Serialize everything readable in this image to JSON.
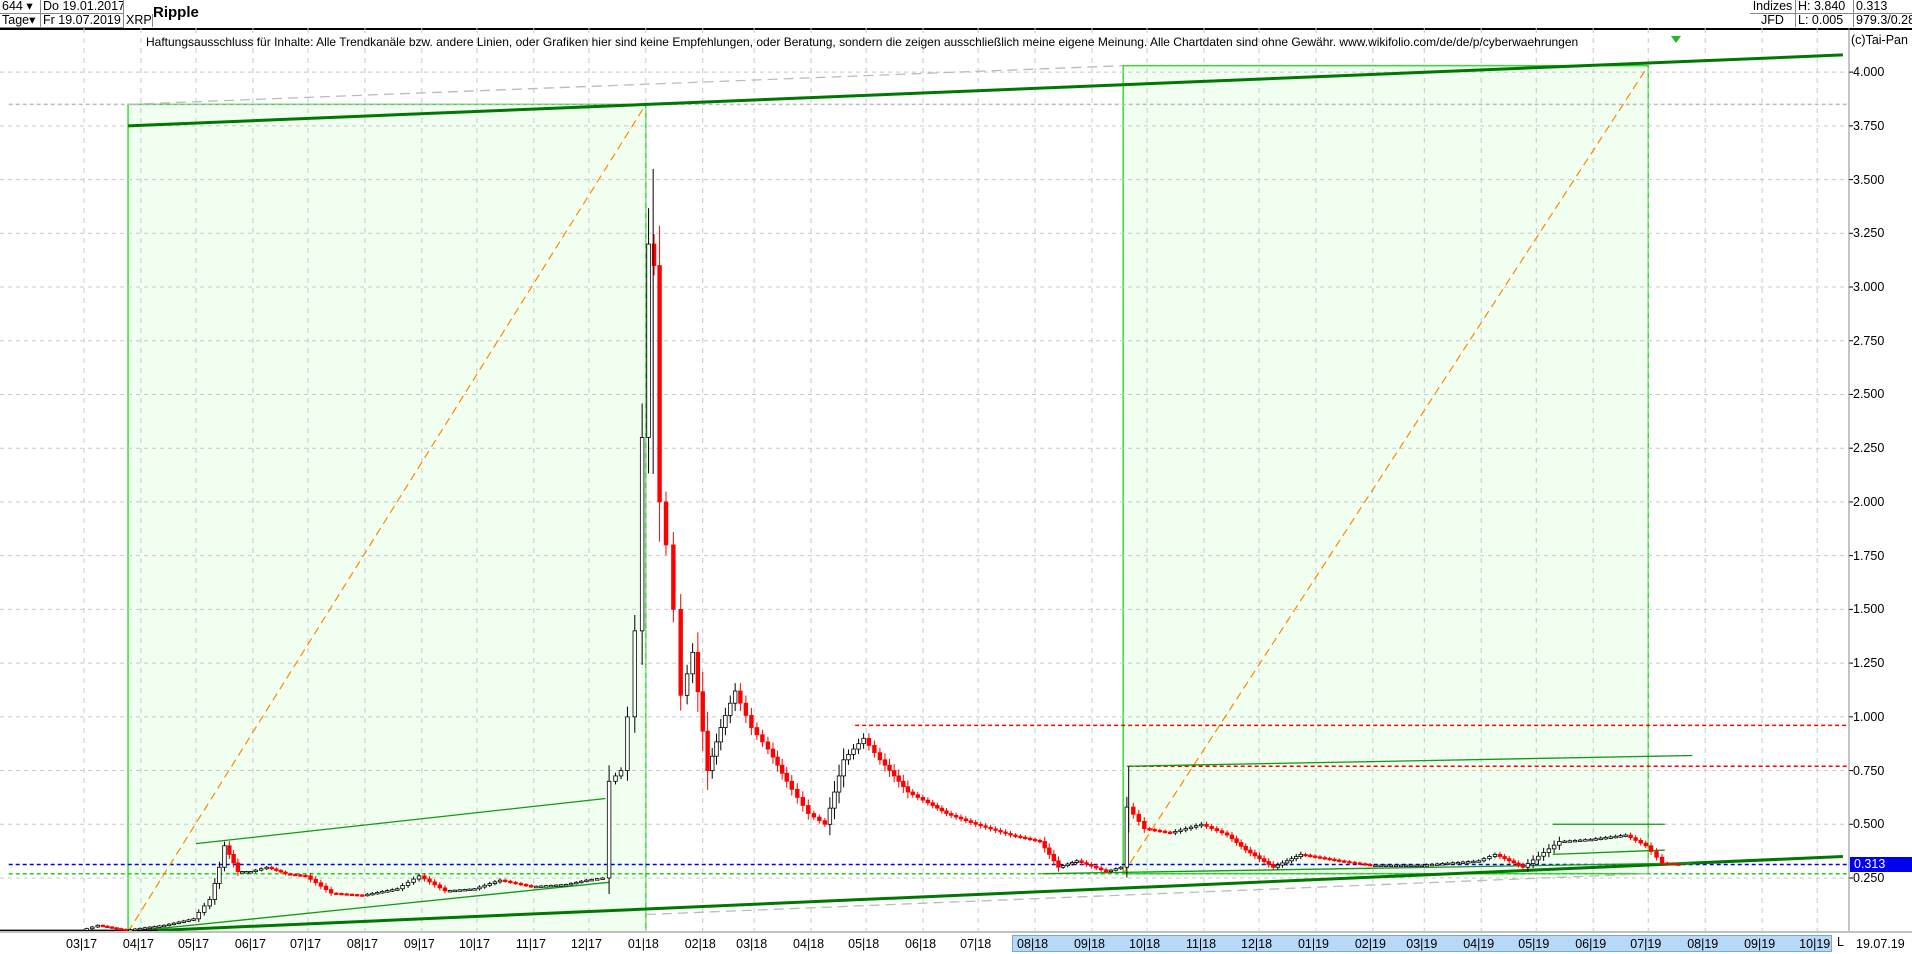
{
  "header": {
    "count": "644",
    "period": "Tage",
    "start_date": "Do 19.01.2017",
    "end_date": "Fr 19.07.2019",
    "symbol": "XRP",
    "title": "Ripple",
    "index_label": "Indizes",
    "source": "JFD",
    "high": "H: 3.840",
    "low": "L: 0.005",
    "last": "0.313",
    "extra": "979.3/0.28"
  },
  "disclaimer": "Haftungsausschluss für Inhalte: Alle Trendkanäle bzw. andere Linien, oder Grafiken hier sind keine Empfehlungen, oder Beratung, sondern die zeigen ausschließlich meine eigene Meinung. Alle Chartdaten sind ohne Gewähr.  www.wikifolio.com/de/de/p/cyberwaehrungen",
  "copyright": "(c)Tai-Pan",
  "x_axis": {
    "end_button": "L",
    "current_date": "19.07.19"
  },
  "colors": {
    "up_candle": "#ffffff",
    "down_candle": "#ff0000",
    "box_fill": "#f0fff0",
    "box_border": "#33dd33",
    "trend_line": "#007700",
    "price_marker": "#0000ee",
    "fib_line": "#ff8800"
  },
  "chart_data": {
    "type": "candlestick",
    "title": "Ripple",
    "y_ticks": [
      "0.250",
      "0.500",
      "0.750",
      "1.000",
      "1.250",
      "1.500",
      "1.750",
      "2.000",
      "2.250",
      "2.500",
      "2.750",
      "3.000",
      "3.250",
      "3.500",
      "3.750",
      "4.000"
    ],
    "x_ticks": [
      "03 17",
      "04 17",
      "05 17",
      "06 17",
      "07 17",
      "08 17",
      "09 17",
      "10 17",
      "11 17",
      "12 17",
      "01 18",
      "02 18",
      "03 18",
      "04 18",
      "05 18",
      "06 18",
      "07 18",
      "08 18",
      "09 18",
      "10 18",
      "11 18",
      "12 18",
      "01 19",
      "02 19",
      "03 19",
      "04 19",
      "05 19",
      "06 19",
      "07 19",
      "08 19",
      "09 19",
      "10 19"
    ],
    "ylim": [
      0,
      4.25
    ],
    "grid": true,
    "last_price": "0.313",
    "closes": [
      [
        "2017-03-01",
        0.006
      ],
      [
        "2017-03-10",
        0.03
      ],
      [
        "2017-03-25",
        0.007
      ],
      [
        "2017-04-15",
        0.03
      ],
      [
        "2017-05-01",
        0.06
      ],
      [
        "2017-05-10",
        0.15
      ],
      [
        "2017-05-15",
        0.3
      ],
      [
        "2017-05-18",
        0.4
      ],
      [
        "2017-05-25",
        0.28
      ],
      [
        "2017-06-01",
        0.28
      ],
      [
        "2017-06-10",
        0.3
      ],
      [
        "2017-06-20",
        0.27
      ],
      [
        "2017-07-01",
        0.26
      ],
      [
        "2017-07-15",
        0.18
      ],
      [
        "2017-08-01",
        0.17
      ],
      [
        "2017-08-20",
        0.2
      ],
      [
        "2017-09-01",
        0.26
      ],
      [
        "2017-09-15",
        0.19
      ],
      [
        "2017-10-01",
        0.2
      ],
      [
        "2017-10-15",
        0.24
      ],
      [
        "2017-11-01",
        0.21
      ],
      [
        "2017-11-20",
        0.22
      ],
      [
        "2017-12-01",
        0.24
      ],
      [
        "2017-12-10",
        0.25
      ],
      [
        "2017-12-14",
        0.7
      ],
      [
        "2017-12-20",
        0.75
      ],
      [
        "2017-12-24",
        1.0
      ],
      [
        "2017-12-28",
        1.4
      ],
      [
        "2018-01-01",
        2.3
      ],
      [
        "2018-01-04",
        3.2
      ],
      [
        "2018-01-07",
        3.1
      ],
      [
        "2018-01-10",
        2.0
      ],
      [
        "2018-01-14",
        1.8
      ],
      [
        "2018-01-18",
        1.5
      ],
      [
        "2018-01-22",
        1.1
      ],
      [
        "2018-01-28",
        1.3
      ],
      [
        "2018-02-05",
        0.75
      ],
      [
        "2018-02-12",
        0.95
      ],
      [
        "2018-02-20",
        1.12
      ],
      [
        "2018-03-01",
        0.95
      ],
      [
        "2018-03-10",
        0.85
      ],
      [
        "2018-03-20",
        0.7
      ],
      [
        "2018-04-01",
        0.55
      ],
      [
        "2018-04-10",
        0.5
      ],
      [
        "2018-04-20",
        0.8
      ],
      [
        "2018-05-01",
        0.9
      ],
      [
        "2018-05-10",
        0.8
      ],
      [
        "2018-05-25",
        0.65
      ],
      [
        "2018-06-05",
        0.6
      ],
      [
        "2018-06-15",
        0.55
      ],
      [
        "2018-07-01",
        0.5
      ],
      [
        "2018-07-20",
        0.45
      ],
      [
        "2018-08-05",
        0.42
      ],
      [
        "2018-08-15",
        0.3
      ],
      [
        "2018-08-25",
        0.33
      ],
      [
        "2018-09-10",
        0.28
      ],
      [
        "2018-09-18",
        0.3
      ],
      [
        "2018-09-22",
        0.58
      ],
      [
        "2018-10-01",
        0.48
      ],
      [
        "2018-10-15",
        0.46
      ],
      [
        "2018-11-01",
        0.5
      ],
      [
        "2018-11-15",
        0.45
      ],
      [
        "2018-11-25",
        0.38
      ],
      [
        "2018-12-10",
        0.3
      ],
      [
        "2018-12-25",
        0.36
      ],
      [
        "2019-01-15",
        0.33
      ],
      [
        "2019-02-01",
        0.31
      ],
      [
        "2019-03-01",
        0.31
      ],
      [
        "2019-04-01",
        0.33
      ],
      [
        "2019-04-10",
        0.36
      ],
      [
        "2019-04-25",
        0.3
      ],
      [
        "2019-05-15",
        0.42
      ],
      [
        "2019-06-01",
        0.43
      ],
      [
        "2019-06-20",
        0.45
      ],
      [
        "2019-07-01",
        0.4
      ],
      [
        "2019-07-10",
        0.32
      ],
      [
        "2019-07-19",
        0.313
      ]
    ],
    "spike_highs": [
      [
        "2018-01-05",
        3.55
      ],
      [
        "2018-09-21",
        0.77
      ]
    ],
    "boxes": [
      {
        "from": "2017-03-25",
        "to": "2018-01-01",
        "low": 0.0,
        "high": 3.85
      },
      {
        "from": "2018-09-18",
        "to": "2019-07-01",
        "low": 0.27,
        "high": 4.03
      }
    ],
    "trend_lines": [
      {
        "style": "thick",
        "from": [
          "2017-03-25",
          3.75
        ],
        "to": [
          "2019-10-15",
          4.08
        ]
      },
      {
        "style": "thick",
        "from": [
          "2017-03-25",
          0.0
        ],
        "to": [
          "2019-10-15",
          0.35
        ]
      },
      {
        "style": "thin",
        "from": [
          "2017-05-01",
          0.41
        ],
        "to": [
          "2017-12-10",
          0.62
        ]
      },
      {
        "style": "thin",
        "from": [
          "2017-03-25",
          0.0
        ],
        "to": [
          "2017-12-12",
          0.23
        ]
      },
      {
        "style": "thin",
        "from": [
          "2018-09-20",
          0.77
        ],
        "to": [
          "2019-07-25",
          0.82
        ]
      },
      {
        "style": "thin",
        "from": [
          "2018-08-05",
          0.27
        ],
        "to": [
          "2019-07-25",
          0.32
        ]
      },
      {
        "style": "thin",
        "from": [
          "2019-05-10",
          0.5
        ],
        "to": [
          "2019-07-10",
          0.5
        ]
      },
      {
        "style": "thin",
        "from": [
          "2019-05-10",
          0.36
        ],
        "to": [
          "2019-07-10",
          0.38
        ]
      },
      {
        "style": "gray",
        "from": [
          "2017-03-25",
          3.85
        ],
        "to": [
          "2018-09-18",
          4.03
        ]
      },
      {
        "style": "gray",
        "from": [
          "2018-01-01",
          0.08
        ],
        "to": [
          "2019-07-01",
          0.27
        ]
      }
    ],
    "diagonals": [
      {
        "from": [
          "2017-03-25",
          0.0
        ],
        "to": [
          "2018-01-01",
          3.85
        ]
      },
      {
        "from": [
          "2018-09-18",
          0.27
        ],
        "to": [
          "2019-07-01",
          4.03
        ]
      }
    ],
    "horizontal_levels": [
      {
        "price": 3.85,
        "color": "#bbbbbb",
        "from": "2017-01-19"
      },
      {
        "price": 0.96,
        "color": "#ff0000",
        "from": "2018-04-25"
      },
      {
        "price": 0.77,
        "color": "#ff0000",
        "from": "2018-09-21"
      },
      {
        "price": 0.313,
        "color": "#0000ee",
        "from": "2017-01-19"
      },
      {
        "price": 0.27,
        "color": "#22cc22",
        "from": "2017-01-19"
      }
    ]
  }
}
